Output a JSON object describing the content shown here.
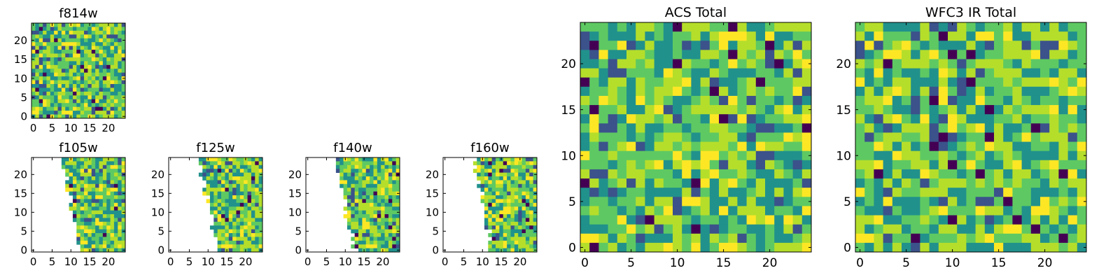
{
  "chart_data": [
    {
      "type": "heatmap",
      "title": "f814w",
      "grid_size": 25,
      "coverage": "full",
      "x_ticks": [
        "0",
        "5",
        "10",
        "15",
        "20"
      ],
      "y_ticks": [
        "0",
        "5",
        "10",
        "15",
        "20"
      ],
      "xlim": [
        -0.5,
        24.5
      ],
      "ylim": [
        -0.5,
        24.5
      ]
    },
    {
      "type": "heatmap",
      "title": "ACS Total",
      "grid_size": 25,
      "coverage": "full",
      "x_ticks": [
        "0",
        "5",
        "10",
        "15",
        "20"
      ],
      "y_ticks": [
        "0",
        "5",
        "10",
        "15",
        "20"
      ],
      "xlim": [
        -0.5,
        24.5
      ],
      "ylim": [
        -0.5,
        24.5
      ]
    },
    {
      "type": "heatmap",
      "title": "WFC3 IR Total",
      "grid_size": 25,
      "coverage": "full",
      "x_ticks": [
        "0",
        "5",
        "10",
        "15",
        "20"
      ],
      "y_ticks": [
        "0",
        "5",
        "10",
        "15",
        "20"
      ],
      "xlim": [
        -0.5,
        24.5
      ],
      "ylim": [
        -0.5,
        24.5
      ]
    },
    {
      "type": "heatmap",
      "title": "f105w",
      "grid_size": 25,
      "coverage": "partial-left-edge",
      "x_ticks": [
        "0",
        "5",
        "10",
        "15",
        "20"
      ],
      "y_ticks": [
        "0",
        "5",
        "10",
        "15",
        "20"
      ],
      "xlim": [
        -0.5,
        24.5
      ],
      "ylim": [
        -0.5,
        24.5
      ]
    },
    {
      "type": "heatmap",
      "title": "f125w",
      "grid_size": 25,
      "coverage": "partial-left-edge",
      "x_ticks": [
        "0",
        "5",
        "10",
        "15",
        "20"
      ],
      "y_ticks": [
        "0",
        "5",
        "10",
        "15",
        "20"
      ],
      "xlim": [
        -0.5,
        24.5
      ],
      "ylim": [
        -0.5,
        24.5
      ]
    },
    {
      "type": "heatmap",
      "title": "f140w",
      "grid_size": 25,
      "coverage": "partial-left-edge",
      "x_ticks": [
        "0",
        "5",
        "10",
        "15",
        "20"
      ],
      "y_ticks": [
        "0",
        "5",
        "10",
        "15",
        "20"
      ],
      "xlim": [
        -0.5,
        24.5
      ],
      "ylim": [
        -0.5,
        24.5
      ]
    },
    {
      "type": "heatmap",
      "title": "f160w",
      "grid_size": 25,
      "coverage": "partial-left-edge",
      "x_ticks": [
        "0",
        "5",
        "10",
        "15",
        "20"
      ],
      "y_ticks": [
        "0",
        "5",
        "10",
        "15",
        "20"
      ],
      "xlim": [
        -0.5,
        24.5
      ],
      "ylim": [
        -0.5,
        24.5
      ]
    }
  ],
  "colormap": {
    "name": "viridis",
    "colors": [
      "#440154",
      "#3b528b",
      "#21918c",
      "#5ec962",
      "#b5de2b",
      "#fde725"
    ]
  }
}
